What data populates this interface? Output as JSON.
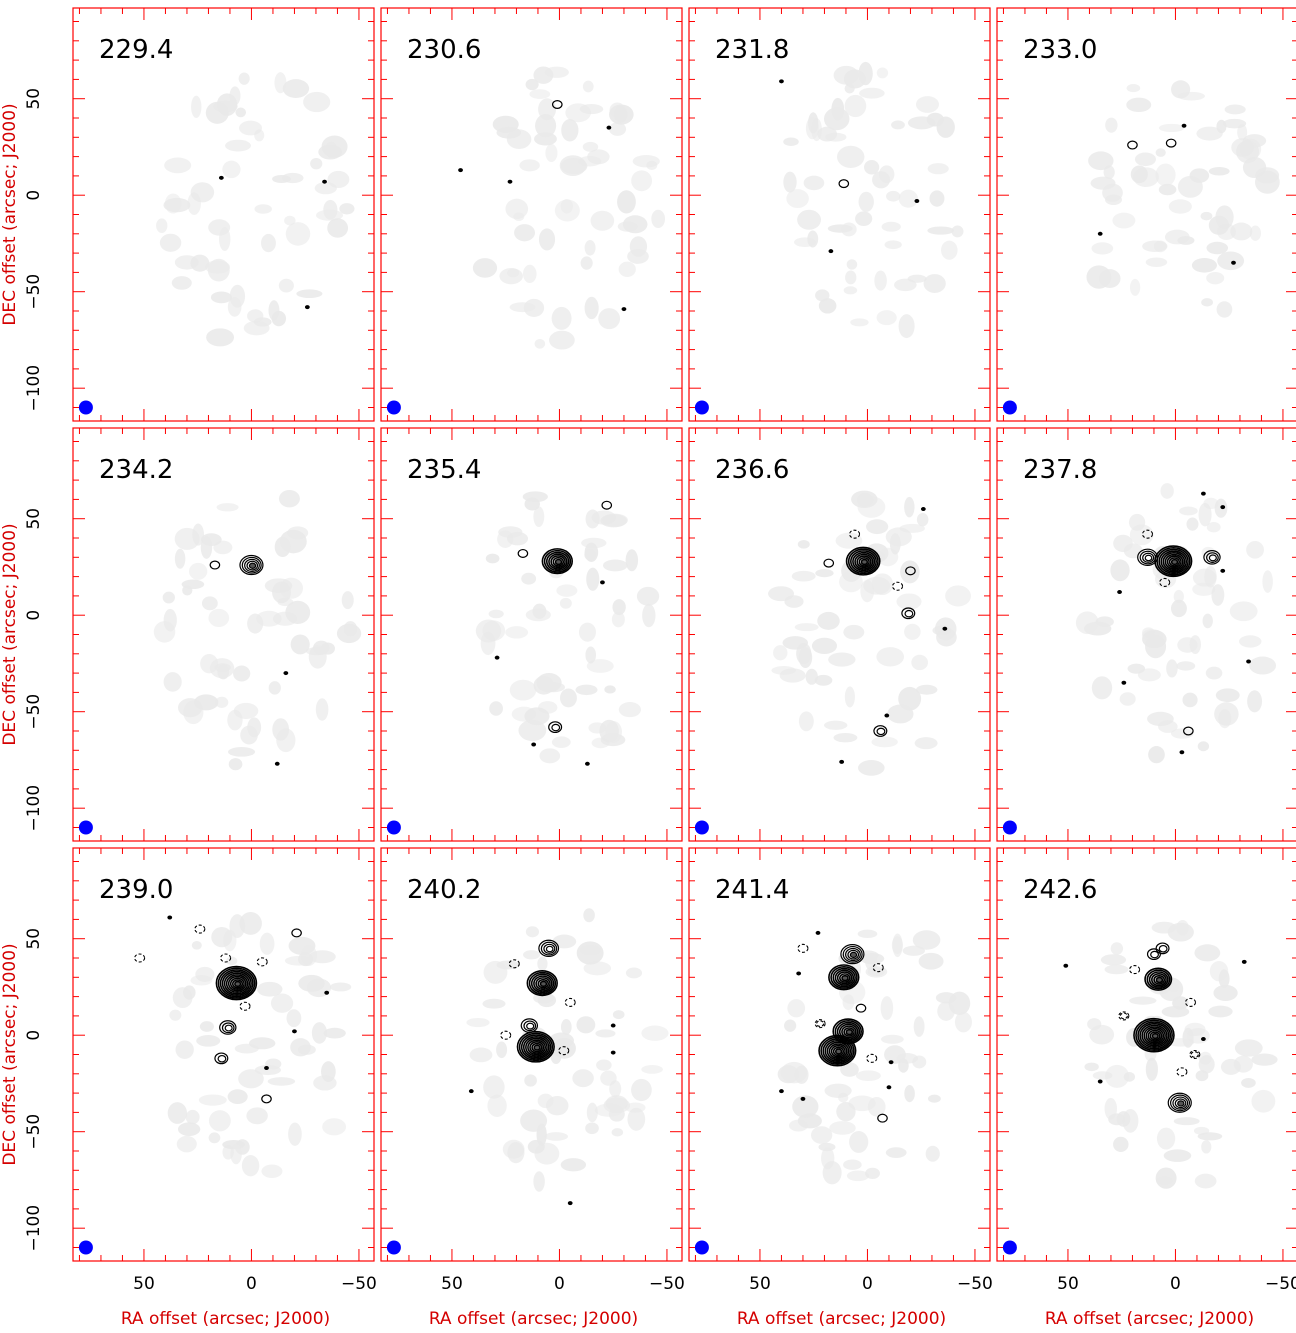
{
  "chart_data": {
    "type": "contour",
    "layout": "3x4 channel-map grid",
    "xlabel": "RA offset (arcsec; J2000)",
    "ylabel": "DEC offset (arcsec; J2000)",
    "xlim": [
      83,
      -57
    ],
    "ylim": [
      -117,
      97
    ],
    "x_ticks": [
      50,
      0,
      -50
    ],
    "x_tick_labels": [
      "50",
      "0",
      "−50"
    ],
    "y_ticks": [
      50,
      0,
      -50,
      -100
    ],
    "y_tick_labels": [
      "50",
      "0",
      "−50",
      "−100"
    ],
    "x_reversed": true,
    "beam": {
      "color": "#0000ff",
      "ra": 77,
      "dec": -110
    },
    "colors": {
      "frame": "#ff0000",
      "axis_text": "#d40000",
      "contour": "#000000",
      "noise": "#e9e9e9",
      "beam": "#0000ff"
    },
    "panels": [
      {
        "label": "229.4",
        "features": [
          {
            "ra": 14,
            "dec": 9,
            "level": 0
          },
          {
            "ra": -34,
            "dec": 7,
            "level": 0
          },
          {
            "ra": -26,
            "dec": -58,
            "level": 0
          }
        ]
      },
      {
        "label": "230.6",
        "features": [
          {
            "ra": 1,
            "dec": 47,
            "level": 1
          },
          {
            "ra": -23,
            "dec": 35,
            "level": 0
          },
          {
            "ra": 46,
            "dec": 13,
            "level": 0
          },
          {
            "ra": 23,
            "dec": 7,
            "level": 0
          },
          {
            "ra": -30,
            "dec": -59,
            "level": 0
          }
        ]
      },
      {
        "label": "231.8",
        "features": [
          {
            "ra": 40,
            "dec": 59,
            "level": 0
          },
          {
            "ra": 11,
            "dec": 6,
            "level": 1
          },
          {
            "ra": -23,
            "dec": -3,
            "level": 0
          },
          {
            "ra": 17,
            "dec": -29,
            "level": 0
          }
        ]
      },
      {
        "label": "233.0",
        "features": [
          {
            "ra": 20,
            "dec": 26,
            "level": 1
          },
          {
            "ra": 2,
            "dec": 27,
            "level": 1
          },
          {
            "ra": -4,
            "dec": 36,
            "level": 0
          },
          {
            "ra": 35,
            "dec": -20,
            "level": 0
          },
          {
            "ra": -27,
            "dec": -35,
            "level": 0
          }
        ]
      },
      {
        "label": "234.2",
        "features": [
          {
            "ra": 0,
            "dec": 26,
            "level": 5
          },
          {
            "ra": 17,
            "dec": 26,
            "level": 1
          },
          {
            "ra": -16,
            "dec": -30,
            "level": 0
          },
          {
            "ra": -12,
            "dec": -77,
            "level": 0
          }
        ]
      },
      {
        "label": "235.4",
        "features": [
          {
            "ra": 1,
            "dec": 28,
            "level": 7
          },
          {
            "ra": 17,
            "dec": 32,
            "level": 1
          },
          {
            "ra": -22,
            "dec": 57,
            "level": 1
          },
          {
            "ra": -20,
            "dec": 17,
            "level": 0
          },
          {
            "ra": 29,
            "dec": -22,
            "level": 0
          },
          {
            "ra": 2,
            "dec": -58,
            "level": 2
          },
          {
            "ra": 12,
            "dec": -67,
            "level": 0
          },
          {
            "ra": -13,
            "dec": -77,
            "level": 0
          }
        ]
      },
      {
        "label": "236.6",
        "features": [
          {
            "ra": 2,
            "dec": 28,
            "level": 8
          },
          {
            "ra": 18,
            "dec": 27,
            "level": 1
          },
          {
            "ra": -20,
            "dec": 23,
            "level": 1
          },
          {
            "ra": -19,
            "dec": 1,
            "level": 2
          },
          {
            "ra": -26,
            "dec": 55,
            "level": 0
          },
          {
            "ra": 6,
            "dec": 42,
            "level": -1
          },
          {
            "ra": -14,
            "dec": 15,
            "level": -1
          },
          {
            "ra": -36,
            "dec": -7,
            "level": 0
          },
          {
            "ra": -6,
            "dec": -60,
            "level": 2
          },
          {
            "ra": -9,
            "dec": -52,
            "level": 0
          },
          {
            "ra": 12,
            "dec": -76,
            "level": 0
          }
        ]
      },
      {
        "label": "237.8",
        "features": [
          {
            "ra": 1,
            "dec": 28,
            "level": 9
          },
          {
            "ra": 13,
            "dec": 30,
            "level": 4
          },
          {
            "ra": -17,
            "dec": 30,
            "level": 3
          },
          {
            "ra": 13,
            "dec": 42,
            "level": -1
          },
          {
            "ra": 5,
            "dec": 17,
            "level": -1
          },
          {
            "ra": 26,
            "dec": 12,
            "level": 0
          },
          {
            "ra": -22,
            "dec": 23,
            "level": 0
          },
          {
            "ra": -13,
            "dec": 63,
            "level": 0
          },
          {
            "ra": -22,
            "dec": 56,
            "level": 0
          },
          {
            "ra": -34,
            "dec": -24,
            "level": 0
          },
          {
            "ra": 24,
            "dec": -35,
            "level": 0
          },
          {
            "ra": -6,
            "dec": -60,
            "level": 1
          },
          {
            "ra": -3,
            "dec": -71,
            "level": 0
          }
        ]
      },
      {
        "label": "239.0",
        "features": [
          {
            "ra": 7,
            "dec": 27,
            "level": 10
          },
          {
            "ra": 12,
            "dec": 40,
            "level": -1
          },
          {
            "ra": 3,
            "dec": 15,
            "level": -1
          },
          {
            "ra": 11,
            "dec": 4,
            "level": 3
          },
          {
            "ra": 14,
            "dec": -12,
            "level": 2
          },
          {
            "ra": -7,
            "dec": -33,
            "level": 1
          },
          {
            "ra": 38,
            "dec": 61,
            "level": 0
          },
          {
            "ra": 24,
            "dec": 55,
            "level": -1
          },
          {
            "ra": -21,
            "dec": 53,
            "level": 1
          },
          {
            "ra": 52,
            "dec": 40,
            "level": -1
          },
          {
            "ra": -5,
            "dec": 38,
            "level": -1
          },
          {
            "ra": -35,
            "dec": 22,
            "level": 0
          },
          {
            "ra": -20,
            "dec": 2,
            "level": 0
          },
          {
            "ra": -7,
            "dec": -17,
            "level": 0
          }
        ]
      },
      {
        "label": "240.2",
        "features": [
          {
            "ra": 5,
            "dec": 45,
            "level": 4
          },
          {
            "ra": 8,
            "dec": 27,
            "level": 7
          },
          {
            "ra": 14,
            "dec": 5,
            "level": 3
          },
          {
            "ra": 11,
            "dec": -6,
            "level": 9
          },
          {
            "ra": 21,
            "dec": 37,
            "level": -1
          },
          {
            "ra": 25,
            "dec": 0,
            "level": -1
          },
          {
            "ra": -5,
            "dec": 17,
            "level": -1
          },
          {
            "ra": -2,
            "dec": -8,
            "level": -1
          },
          {
            "ra": -25,
            "dec": 5,
            "level": 0
          },
          {
            "ra": -25,
            "dec": -9,
            "level": 0
          },
          {
            "ra": 41,
            "dec": -29,
            "level": 0
          },
          {
            "ra": -5,
            "dec": -87,
            "level": 0
          }
        ]
      },
      {
        "label": "241.4",
        "features": [
          {
            "ra": 7,
            "dec": 42,
            "level": 5
          },
          {
            "ra": 11,
            "dec": 30,
            "level": 7
          },
          {
            "ra": 9,
            "dec": 2,
            "level": 7
          },
          {
            "ra": 14,
            "dec": -8,
            "level": 9
          },
          {
            "ra": 23,
            "dec": 53,
            "level": 0
          },
          {
            "ra": 30,
            "dec": 45,
            "level": -1
          },
          {
            "ra": 32,
            "dec": 32,
            "level": 0
          },
          {
            "ra": -5,
            "dec": 35,
            "level": -1
          },
          {
            "ra": 22,
            "dec": 6,
            "level": -2
          },
          {
            "ra": 3,
            "dec": 14,
            "level": 1
          },
          {
            "ra": -2,
            "dec": -12,
            "level": -1
          },
          {
            "ra": -11,
            "dec": -14,
            "level": 0
          },
          {
            "ra": -10,
            "dec": -27,
            "level": 0
          },
          {
            "ra": 40,
            "dec": -29,
            "level": 0
          },
          {
            "ra": 30,
            "dec": -33,
            "level": 0
          },
          {
            "ra": -7,
            "dec": -43,
            "level": 1
          }
        ]
      },
      {
        "label": "242.6",
        "features": [
          {
            "ra": 10,
            "dec": 42,
            "level": 2
          },
          {
            "ra": 6,
            "dec": 45,
            "level": 2
          },
          {
            "ra": 8,
            "dec": 29,
            "level": 6
          },
          {
            "ra": 10,
            "dec": 0,
            "level": 10
          },
          {
            "ra": -2,
            "dec": -35,
            "level": 5
          },
          {
            "ra": 19,
            "dec": 34,
            "level": -1
          },
          {
            "ra": 24,
            "dec": 10,
            "level": -2
          },
          {
            "ra": -7,
            "dec": 17,
            "level": -1
          },
          {
            "ra": -9,
            "dec": -10,
            "level": -2
          },
          {
            "ra": -3,
            "dec": -19,
            "level": -1
          },
          {
            "ra": 35,
            "dec": -24,
            "level": 0
          },
          {
            "ra": -32,
            "dec": 38,
            "level": 0
          },
          {
            "ra": 51,
            "dec": 36,
            "level": 0
          },
          {
            "ra": -13,
            "dec": -2,
            "level": 0
          }
        ]
      }
    ]
  }
}
